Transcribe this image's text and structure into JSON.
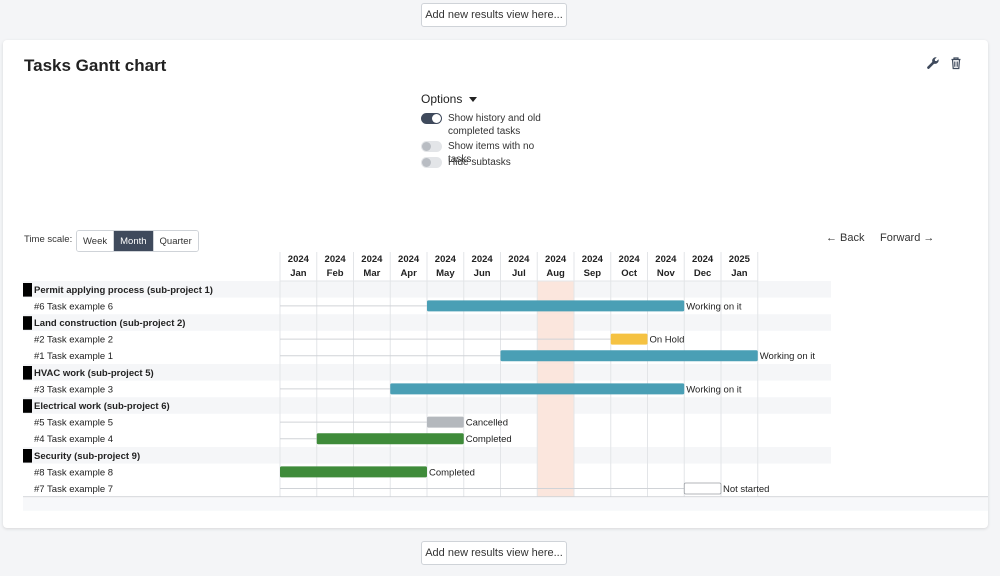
{
  "add_view_top": "Add new results view here...",
  "add_view_bottom": "Add new results view here...",
  "panel": {
    "title": "Tasks Gantt chart",
    "tools": [
      "wrench-icon",
      "trash-icon"
    ]
  },
  "options": {
    "title": "Options",
    "toggles": [
      {
        "label": "Show history and old completed tasks",
        "on": true
      },
      {
        "label": "Show items with no tasks",
        "on": false
      },
      {
        "label": "Hide subtasks",
        "on": false
      }
    ]
  },
  "timescale": {
    "label": "Time scale:",
    "options": [
      "Week",
      "Month",
      "Quarter"
    ],
    "selected": "Month"
  },
  "nav": {
    "back": "← Back",
    "forward": "Forward →"
  },
  "months": [
    {
      "year": "2024",
      "month": "Jan"
    },
    {
      "year": "2024",
      "month": "Feb"
    },
    {
      "year": "2024",
      "month": "Mar"
    },
    {
      "year": "2024",
      "month": "Apr"
    },
    {
      "year": "2024",
      "month": "May"
    },
    {
      "year": "2024",
      "month": "Jun"
    },
    {
      "year": "2024",
      "month": "Jul"
    },
    {
      "year": "2024",
      "month": "Aug"
    },
    {
      "year": "2024",
      "month": "Sep"
    },
    {
      "year": "2024",
      "month": "Oct"
    },
    {
      "year": "2024",
      "month": "Nov"
    },
    {
      "year": "2024",
      "month": "Dec"
    },
    {
      "year": "2025",
      "month": "Jan"
    }
  ],
  "current_month_index": 7,
  "colors": {
    "working": "#4a9fb5",
    "on_hold": "#f5c242",
    "cancelled": "#b4b8bd",
    "completed": "#3f8b3a",
    "not_started": "#ffffff",
    "current_month": "#fbe6dd",
    "group_marker": "#000000"
  },
  "rows": [
    {
      "type": "group",
      "label": "Permit applying process (sub-project 1)"
    },
    {
      "type": "task",
      "label": "#6 Task example 6",
      "start": 4,
      "end": 11,
      "status": "Working on it",
      "color": "working"
    },
    {
      "type": "group",
      "label": "Land construction (sub-project 2)"
    },
    {
      "type": "task",
      "label": "#2 Task example 2",
      "start": 9,
      "end": 10,
      "status": "On Hold",
      "color": "on_hold"
    },
    {
      "type": "task",
      "label": "#1 Task example 1",
      "start": 6,
      "end": 13,
      "status": "Working on it",
      "color": "working"
    },
    {
      "type": "group",
      "label": "HVAC work (sub-project 5)"
    },
    {
      "type": "task",
      "label": "#3 Task example 3",
      "start": 3,
      "end": 11,
      "status": "Working on it",
      "color": "working"
    },
    {
      "type": "group",
      "label": "Electrical work (sub-project 6)"
    },
    {
      "type": "task",
      "label": "#5 Task example 5",
      "start": 4,
      "end": 5,
      "status": "Cancelled",
      "color": "cancelled"
    },
    {
      "type": "task",
      "label": "#4 Task example 4",
      "start": 1,
      "end": 5,
      "status": "Completed",
      "color": "completed"
    },
    {
      "type": "group",
      "label": "Security (sub-project 9)"
    },
    {
      "type": "task",
      "label": "#8 Task example 8",
      "start": 0,
      "end": 4,
      "status": "Completed",
      "color": "completed"
    },
    {
      "type": "task",
      "label": "#7 Task example 7",
      "start": 11,
      "end": 12,
      "status": "Not started",
      "color": "not_started"
    }
  ]
}
